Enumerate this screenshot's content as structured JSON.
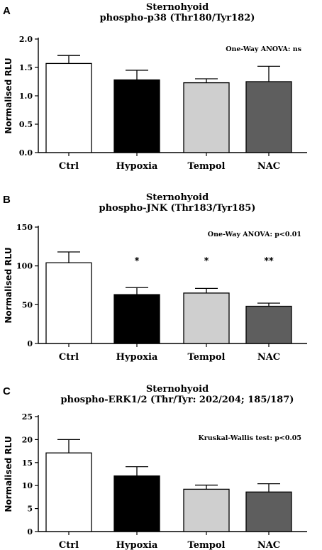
{
  "chart_data": [
    {
      "type": "bar",
      "panel": "A",
      "title": "Sternohyoid",
      "subtitle": "phospho-p38 (Thr180/Tyr182)",
      "ylabel": "Normalised RLU",
      "categories": [
        "Ctrl",
        "Hypoxia",
        "Tempol",
        "NAC"
      ],
      "values": [
        1.57,
        1.28,
        1.23,
        1.25
      ],
      "errors": [
        0.14,
        0.17,
        0.07,
        0.27
      ],
      "ylim": [
        0,
        2.0
      ],
      "yticks": [
        "0.0",
        "0.5",
        "1.0",
        "1.5",
        "2.0"
      ],
      "ytick_values": [
        0,
        0.5,
        1.0,
        1.5,
        2.0
      ],
      "annotation": "One-Way ANOVA: ns",
      "significance": [
        "",
        "",
        "",
        ""
      ]
    },
    {
      "type": "bar",
      "panel": "B",
      "title": "Sternohyoid",
      "subtitle": "phospho-JNK (Thr183/Tyr185)",
      "ylabel": "Normalised RLU",
      "categories": [
        "Ctrl",
        "Hypoxia",
        "Tempol",
        "NAC"
      ],
      "values": [
        104,
        63,
        65,
        48
      ],
      "errors": [
        14,
        9,
        6,
        4
      ],
      "ylim": [
        0,
        150
      ],
      "yticks": [
        "0",
        "50",
        "100",
        "150"
      ],
      "ytick_values": [
        0,
        50,
        100,
        150
      ],
      "annotation": "One-Way ANOVA: p<0.01",
      "significance": [
        "",
        "*",
        "*",
        "**"
      ]
    },
    {
      "type": "bar",
      "panel": "C",
      "title": "Sternohyoid",
      "subtitle": "phospho-ERK1/2 (Thr/Tyr: 202/204; 185/187)",
      "ylabel": "Normalised RLU",
      "categories": [
        "Ctrl",
        "Hypoxia",
        "Tempol",
        "NAC"
      ],
      "values": [
        17.1,
        12.1,
        9.2,
        8.6
      ],
      "errors": [
        2.9,
        2.0,
        0.9,
        1.8
      ],
      "ylim": [
        0,
        25
      ],
      "yticks": [
        "0",
        "5",
        "10",
        "15",
        "20",
        "25"
      ],
      "ytick_values": [
        0,
        5,
        10,
        15,
        20,
        25
      ],
      "annotation": "Kruskal-Wallis test: p<0.05",
      "significance": [
        "",
        "",
        "",
        ""
      ]
    }
  ],
  "colors": {
    "bars": [
      "#ffffff",
      "#000000",
      "#cfcfcf",
      "#5e5e5e"
    ],
    "stroke": "#000000"
  }
}
